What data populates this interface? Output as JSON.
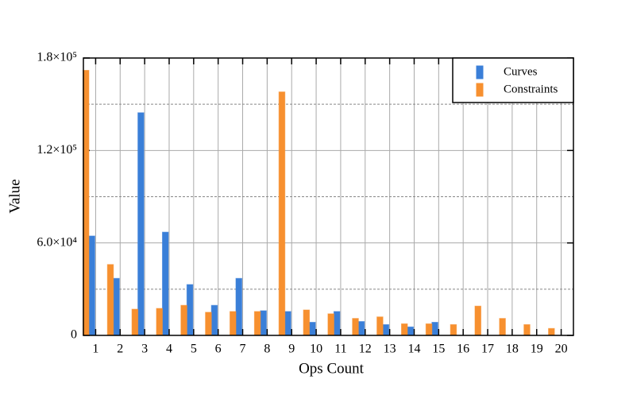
{
  "chart_data": {
    "type": "bar",
    "x_label": "Ops Count",
    "y_label": "Value",
    "categories": [
      "1",
      "2",
      "3",
      "4",
      "5",
      "6",
      "7",
      "8",
      "9",
      "10",
      "11",
      "12",
      "13",
      "14",
      "15",
      "16",
      "17",
      "18",
      "19",
      "20"
    ],
    "series": [
      {
        "name": "Curves",
        "color": "#3a7fd8",
        "values": [
          64500,
          37000,
          144500,
          67000,
          33000,
          19500,
          37000,
          16000,
          15500,
          8500,
          15500,
          9000,
          7000,
          5500,
          8500,
          0,
          0,
          0,
          0,
          0
        ]
      },
      {
        "name": "Constraints",
        "color": "#f7902f",
        "values": [
          172000,
          46000,
          17000,
          17500,
          19500,
          15000,
          15500,
          15500,
          158000,
          16500,
          14000,
          11000,
          12000,
          7500,
          7500,
          7000,
          19000,
          11000,
          7000,
          4500
        ]
      }
    ],
    "ylim": [
      0,
      180000
    ],
    "yticks": [
      {
        "value": 0,
        "label": "0"
      },
      {
        "value": 60000,
        "label": "6.0×10⁴"
      },
      {
        "value": 120000,
        "label": "1.2×10⁵"
      },
      {
        "value": 180000,
        "label": "1.8×10⁵"
      }
    ],
    "yminor_ticks": [
      30000,
      90000,
      150000
    ],
    "grid": true,
    "legend": "upper right"
  }
}
